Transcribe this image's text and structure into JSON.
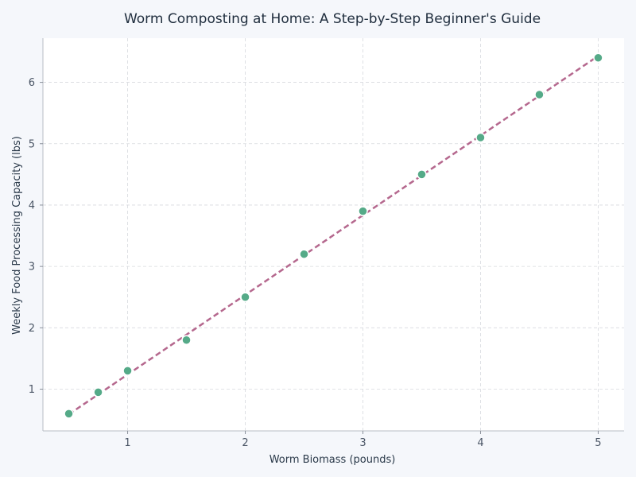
{
  "chart_data": {
    "type": "scatter",
    "title": "Worm Composting at Home: A Step-by-Step Beginner's Guide",
    "xlabel": "Worm Biomass (pounds)",
    "ylabel": "Weekly Food Processing Capacity (lbs)",
    "xlim": [
      0.28,
      5.22
    ],
    "ylim": [
      0.32,
      6.72
    ],
    "xticks": [
      1,
      2,
      3,
      4,
      5
    ],
    "yticks": [
      1,
      2,
      3,
      4,
      5,
      6
    ],
    "grid": true,
    "series": [
      {
        "type": "scatter",
        "color": "#55aa88",
        "points": [
          {
            "x": 0.5,
            "y": 0.6
          },
          {
            "x": 0.75,
            "y": 0.95
          },
          {
            "x": 1.0,
            "y": 1.3
          },
          {
            "x": 1.5,
            "y": 1.8
          },
          {
            "x": 2.0,
            "y": 2.5
          },
          {
            "x": 2.5,
            "y": 3.2
          },
          {
            "x": 3.0,
            "y": 3.9
          },
          {
            "x": 3.5,
            "y": 4.5
          },
          {
            "x": 4.0,
            "y": 5.1
          },
          {
            "x": 4.5,
            "y": 5.8
          },
          {
            "x": 5.0,
            "y": 6.4
          }
        ]
      },
      {
        "type": "line",
        "style": "dashed",
        "color": "#b5688e",
        "points": [
          {
            "x": 0.5,
            "y": 0.59
          },
          {
            "x": 5.0,
            "y": 6.43
          }
        ]
      }
    ]
  }
}
